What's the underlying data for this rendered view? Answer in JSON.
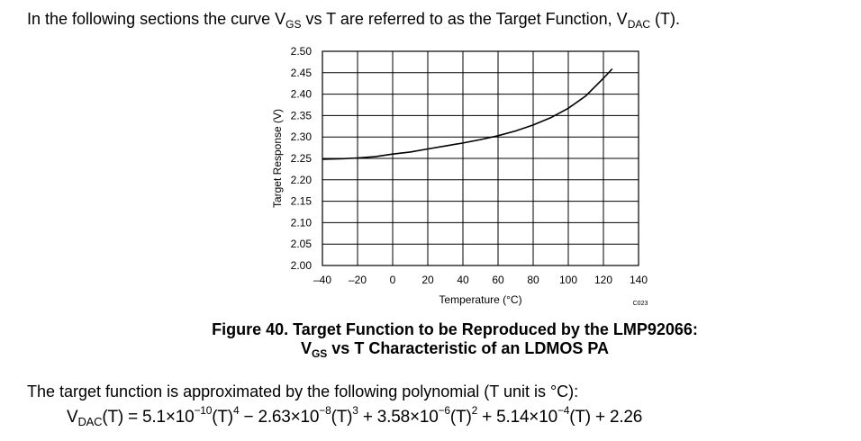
{
  "intro": {
    "part1": "In the following sections the curve V",
    "sub1": "GS",
    "part2": " vs T are referred to as the Target Function, V",
    "sub2": "DAC",
    "part3": " (T)."
  },
  "chart_data": {
    "type": "line",
    "title": "",
    "xlabel": "Temperature (°C)",
    "ylabel": "Target Response (V)",
    "xlim": [
      -40,
      140
    ],
    "ylim": [
      2.0,
      2.5
    ],
    "x_ticks": [
      "–40",
      "–20",
      "0",
      "20",
      "40",
      "60",
      "80",
      "100",
      "120",
      "140"
    ],
    "y_ticks": [
      "2.00",
      "2.05",
      "2.10",
      "2.15",
      "2.20",
      "2.25",
      "2.30",
      "2.35",
      "2.40",
      "2.45",
      "2.50"
    ],
    "grid": true,
    "code_label": "C023",
    "series": [
      {
        "x": [
          -40,
          -30,
          -20,
          -10,
          0,
          10,
          20,
          30,
          40,
          50,
          60,
          70,
          80,
          90,
          100,
          110,
          120,
          125
        ],
        "values": [
          2.248,
          2.249,
          2.251,
          2.254,
          2.26,
          2.265,
          2.272,
          2.279,
          2.286,
          2.294,
          2.303,
          2.314,
          2.328,
          2.345,
          2.367,
          2.396,
          2.437,
          2.459
        ]
      }
    ]
  },
  "caption": {
    "line1": "Figure 40.  Target Function to be Reproduced by the LMP92066:",
    "line2_pre": "V",
    "line2_sub": "GS",
    "line2_post": " vs T Characteristic of an LDMOS PA"
  },
  "paragraph": "The target function is approximated by the following polynomial (T unit is °C):",
  "formula": {
    "lhs": "V",
    "lhs_sub": "DAC",
    "lhs_rest": "(T) = 5.1×10",
    "e1": "−10",
    "p1": "(T)",
    "e1b": "4",
    "t2": " − 2.63×10",
    "e2": "−8",
    "p2": "(T)",
    "e2b": "3",
    "t3": " + 3.58×10",
    "e3": "−6",
    "p3": "(T)",
    "e3b": "2",
    "t4": " + 5.14×10",
    "e4": "−4",
    "t5": "(T) + 2.26"
  }
}
